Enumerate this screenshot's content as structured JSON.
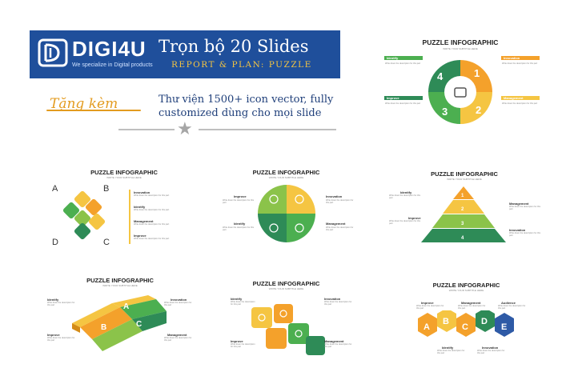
{
  "brand": {
    "name": "DIGI4U",
    "tagline": "We specialize in Digital products",
    "colors": {
      "banner": "#1f4f9b",
      "yellow": "#f5c542",
      "green": "#4caf50",
      "orange": "#f4a12b",
      "blue": "#2e5aa6"
    }
  },
  "banner": {
    "title": "Trọn bộ 20 Slides",
    "subtitle": "REPORT & PLAN: PUZZLE"
  },
  "promo": {
    "gift_label": "Tặng kèm",
    "description": "Thư viện 1500+ icon vector, fully customized dùng cho mọi slide"
  },
  "slides": [
    {
      "title": "PUZZLE INFOGRAPHIC",
      "subtitle": "WRITE YOUR SUBTITLE HERE",
      "labels": [
        "Identify",
        "Innovation",
        "Improve",
        "Management"
      ],
      "numbers": [
        "1",
        "2",
        "3",
        "4"
      ]
    },
    {
      "title": "PUZZLE INFOGRAPHIC",
      "subtitle": "WRITE YOUR SUBTITLE HERE",
      "labels": [
        "Innovation",
        "Identify",
        "Management",
        "Improve"
      ],
      "corners": [
        "A",
        "B",
        "C",
        "D"
      ]
    },
    {
      "title": "PUZZLE INFOGRAPHIC",
      "subtitle": "WRITE YOUR SUBTITLE HERE",
      "labels": [
        "Improve",
        "Innovation",
        "Identify",
        "Management"
      ]
    },
    {
      "title": "PUZZLE INFOGRAPHIC",
      "subtitle": "WRITE YOUR SUBTITLE HERE",
      "labels": [
        "Identify",
        "Management",
        "Improve",
        "Innovation"
      ],
      "numbers": [
        "1",
        "2",
        "3",
        "4"
      ]
    },
    {
      "title": "PUZZLE INFOGRAPHIC",
      "subtitle": "WRITE YOUR SUBTITLE HERE",
      "labels": [
        "Identify",
        "Innovation",
        "Improve",
        "Management"
      ],
      "letters": [
        "A",
        "B",
        "C"
      ]
    },
    {
      "title": "PUZZLE INFOGRAPHIC",
      "subtitle": "WRITE YOUR SUBTITLE HERE",
      "labels": [
        "Identify",
        "Innovation",
        "Improve",
        "Management"
      ]
    },
    {
      "title": "PUZZLE INFOGRAPHIC",
      "subtitle": "WRITE YOUR SUBTITLE HERE",
      "labels": [
        "Improve",
        "Management",
        "Audience",
        "Identify",
        "Innovation"
      ],
      "letters": [
        "A",
        "B",
        "C",
        "D",
        "E"
      ]
    }
  ],
  "placeholder_text": "Write down the description for this part"
}
